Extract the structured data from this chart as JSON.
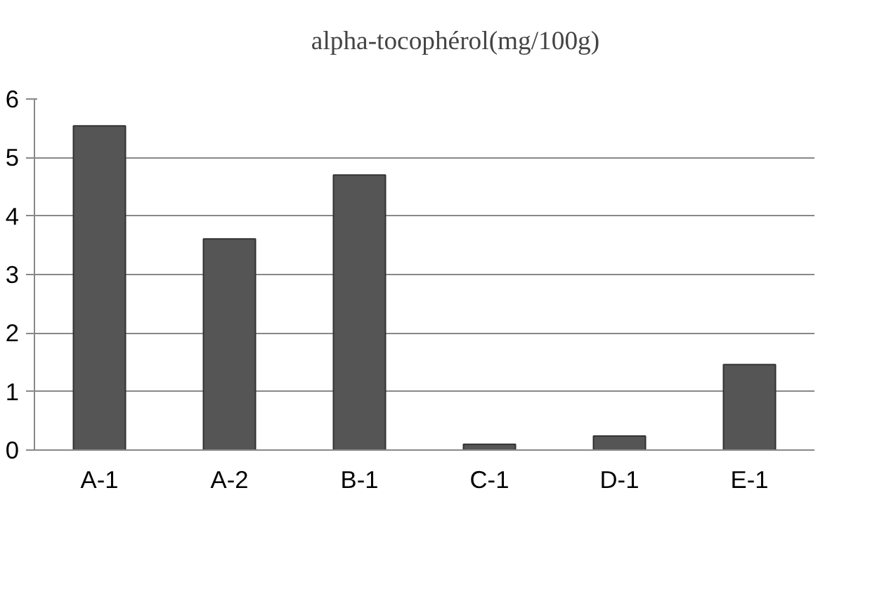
{
  "chart_data": {
    "type": "bar",
    "categories": [
      "A-1",
      "A-2",
      "B-1",
      "C-1",
      "D-1",
      "E-1"
    ],
    "series": [
      {
        "name": "alpha-tocophérol(mg/100g)",
        "color": "#555555",
        "values": [
          5.54,
          3.61,
          4.7,
          0.1,
          0.24,
          1.46
        ]
      }
    ],
    "ylim": [
      0,
      6
    ],
    "yticks": [
      0,
      1,
      2,
      3,
      4,
      5,
      6
    ],
    "grid": "y",
    "legend": "top"
  }
}
